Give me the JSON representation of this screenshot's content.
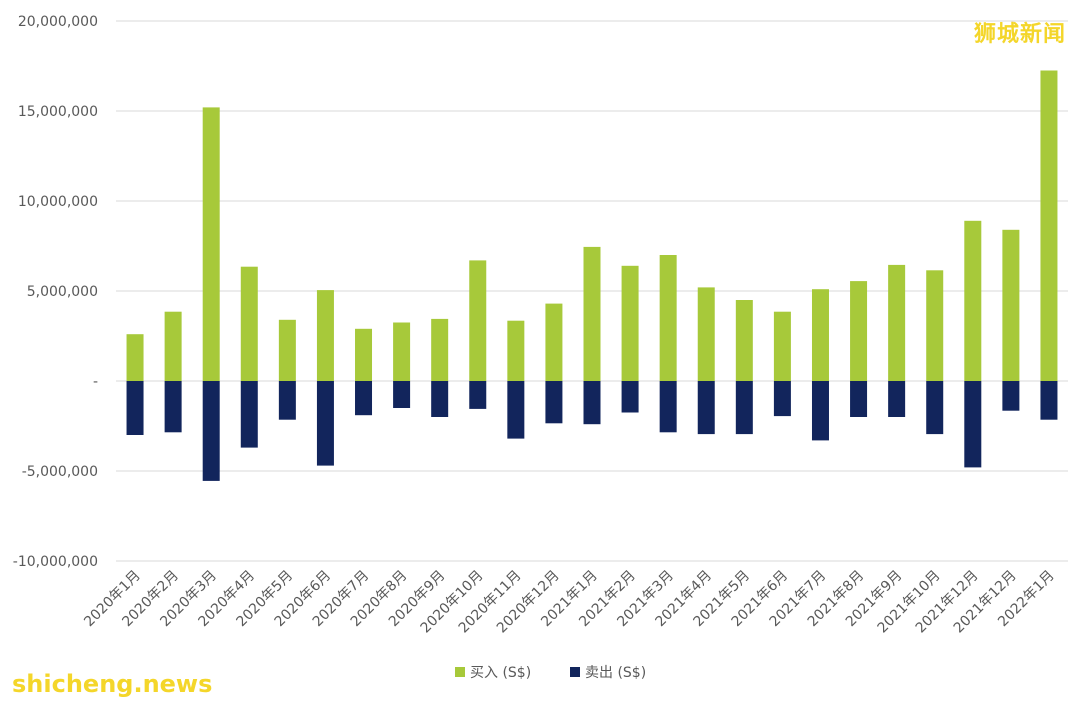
{
  "chart_data": {
    "type": "bar",
    "title": "",
    "xlabel": "",
    "ylabel": "",
    "ylim": [
      -10000000,
      20000000
    ],
    "yticks": [
      20000000,
      15000000,
      10000000,
      5000000,
      0,
      -5000000,
      -10000000
    ],
    "ytick_labels": [
      "20,000,000",
      "15,000,000",
      "10,000,000",
      "5,000,000",
      "-",
      "-5,000,000",
      "-10,000,000"
    ],
    "categories": [
      "2020年1月",
      "2020年2月",
      "2020年3月",
      "2020年4月",
      "2020年5月",
      "2020年6月",
      "2020年7月",
      "2020年8月",
      "2020年9月",
      "2020年10月",
      "2020年11月",
      "2020年12月",
      "2021年1月",
      "2021年2月",
      "2021年3月",
      "2021年4月",
      "2021年5月",
      "2021年6月",
      "2021年7月",
      "2021年8月",
      "2021年9月",
      "2021年10月",
      "2021年12月",
      "2021年12月",
      "2022年1月"
    ],
    "series": [
      {
        "name": "买入 (S$)",
        "color": "#a7c93a",
        "values": [
          2600000,
          3850000,
          15200000,
          6350000,
          3400000,
          5050000,
          2900000,
          3250000,
          3450000,
          6700000,
          3350000,
          4300000,
          7450000,
          6400000,
          7000000,
          5200000,
          4500000,
          3850000,
          5100000,
          5550000,
          6450000,
          6150000,
          8900000,
          8400000,
          17250000
        ]
      },
      {
        "name": "卖出 (S$)",
        "color": "#12255c",
        "values": [
          -3000000,
          -2850000,
          -5550000,
          -3700000,
          -2150000,
          -4700000,
          -1900000,
          -1500000,
          -2000000,
          -1550000,
          -3200000,
          -2350000,
          -2400000,
          -1750000,
          -2850000,
          -2950000,
          -2950000,
          -1950000,
          -3300000,
          -2000000,
          -2000000,
          -2950000,
          -4800000,
          -1650000,
          -2150000
        ]
      }
    ],
    "grid": true,
    "legend": "bottom-center"
  },
  "watermarks": {
    "top_right": "狮城新闻",
    "bottom_left": "shicheng.news"
  }
}
